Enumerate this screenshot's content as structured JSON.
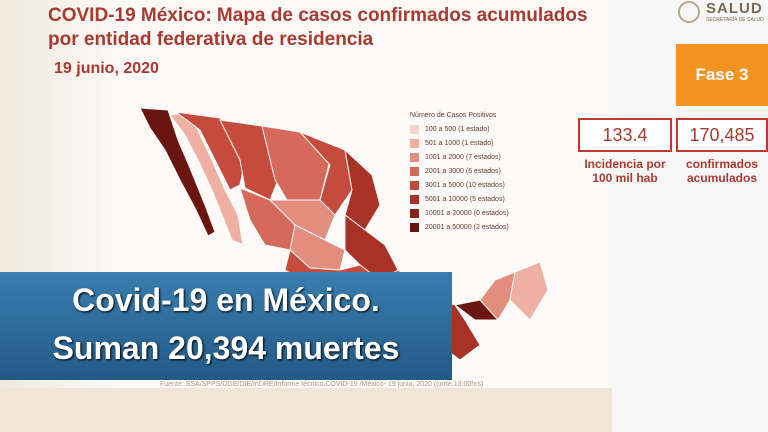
{
  "header": {
    "title_lines": [
      "COVID-19 México: Mapa de casos confirmados acumulados",
      "por entidad federativa de residencia"
    ],
    "date": "19 junio, 2020"
  },
  "logo": {
    "name": "SALUD",
    "subtitle": "SECRETARÍA DE SALUD"
  },
  "phase": "Fase 3",
  "stats": [
    {
      "value": "133.4",
      "label_lines": [
        "Incidencia por",
        "100 mil hab"
      ]
    },
    {
      "value": "170,485",
      "label_lines": [
        "confirmados",
        "acumulados"
      ]
    }
  ],
  "legend": {
    "title": "Número de Casos Positivos",
    "items": [
      {
        "label": "100 a 500 (1 estado)",
        "color": "#f6d3cb"
      },
      {
        "label": "501 a 1000 (1 estado)",
        "color": "#eeb0a3"
      },
      {
        "label": "1001 a 2000 (7 estados)",
        "color": "#e28d7e"
      },
      {
        "label": "2001 a 3000 (6 estados)",
        "color": "#d56a5c"
      },
      {
        "label": "3001 a 5000 (10 estados)",
        "color": "#c54b3e"
      },
      {
        "label": "5001 a 10000 (5 estados)",
        "color": "#a93226"
      },
      {
        "label": "10001 a 20000 (0 estados)",
        "color": "#8b2118"
      },
      {
        "label": "20001 a 50000 (2 estados)",
        "color": "#6b1510"
      }
    ]
  },
  "source": "Fuente: SSA/SPPS/DGE/DIE/InDRE/Informe técnico.COVID-19 /México- 19 junio, 2020 (corte 13:00hrs)",
  "caption": {
    "lines": [
      "Covid-19 en México.",
      "Suman 20,394 muertes"
    ]
  }
}
